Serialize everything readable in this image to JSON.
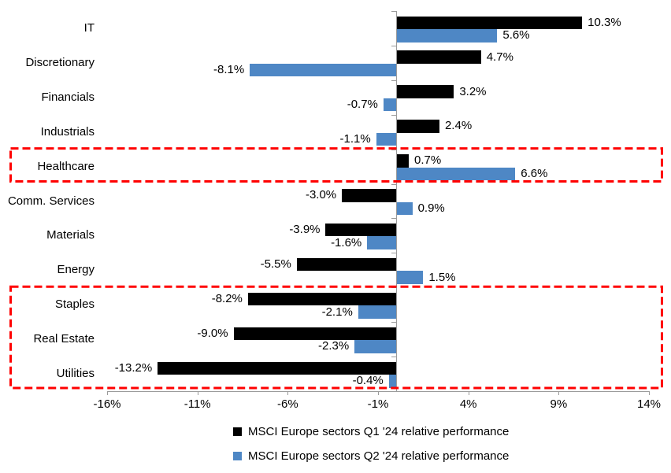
{
  "chart_data": {
    "type": "bar",
    "orientation": "horizontal",
    "title": "",
    "categories": [
      "IT",
      "Discretionary",
      "Financials",
      "Industrials",
      "Healthcare",
      "Comm. Services",
      "Materials",
      "Energy",
      "Staples",
      "Real Estate",
      "Utilities"
    ],
    "series": [
      {
        "name": "MSCI Europe sectors Q1 '24 relative performance",
        "color": "#000000",
        "values": [
          10.3,
          4.7,
          3.2,
          2.4,
          0.7,
          -3.0,
          -3.9,
          -5.5,
          -8.2,
          -9.0,
          -13.2
        ],
        "labels": [
          "10.3%",
          "4.7%",
          "3.2%",
          "2.4%",
          "0.7%",
          "-3.0%",
          "-3.9%",
          "-5.5%",
          "-8.2%",
          "-9.0%",
          "-13.2%"
        ]
      },
      {
        "name": "MSCI Europe sectors Q2 '24 relative performance",
        "color": "#4e87c5",
        "values": [
          5.6,
          -8.1,
          -0.7,
          -1.1,
          6.6,
          0.9,
          -1.6,
          1.5,
          -2.1,
          -2.3,
          -0.4
        ],
        "labels": [
          "5.6%",
          "-8.1%",
          "-0.7%",
          "-1.1%",
          "6.6%",
          "0.9%",
          "-1.6%",
          "1.5%",
          "-2.1%",
          "-2.3%",
          "-0.4%"
        ]
      }
    ],
    "x_axis": {
      "min": -16,
      "max": 14,
      "tick_values": [
        -16,
        -11,
        -6,
        -1,
        4,
        9,
        14
      ],
      "tick_labels": [
        "-16%",
        "-11%",
        "-6%",
        "-1%",
        "4%",
        "9%",
        "14%"
      ]
    },
    "grid": false,
    "data_labels_shown": true,
    "legend_position": "bottom",
    "highlights": [
      {
        "name": "healthcare",
        "row_start": 4,
        "row_end": 4,
        "color": "#ff0000",
        "style": "dashed"
      },
      {
        "name": "staples-real-estate-utilities",
        "row_start": 8,
        "row_end": 10,
        "color": "#ff0000",
        "style": "dashed"
      }
    ]
  }
}
